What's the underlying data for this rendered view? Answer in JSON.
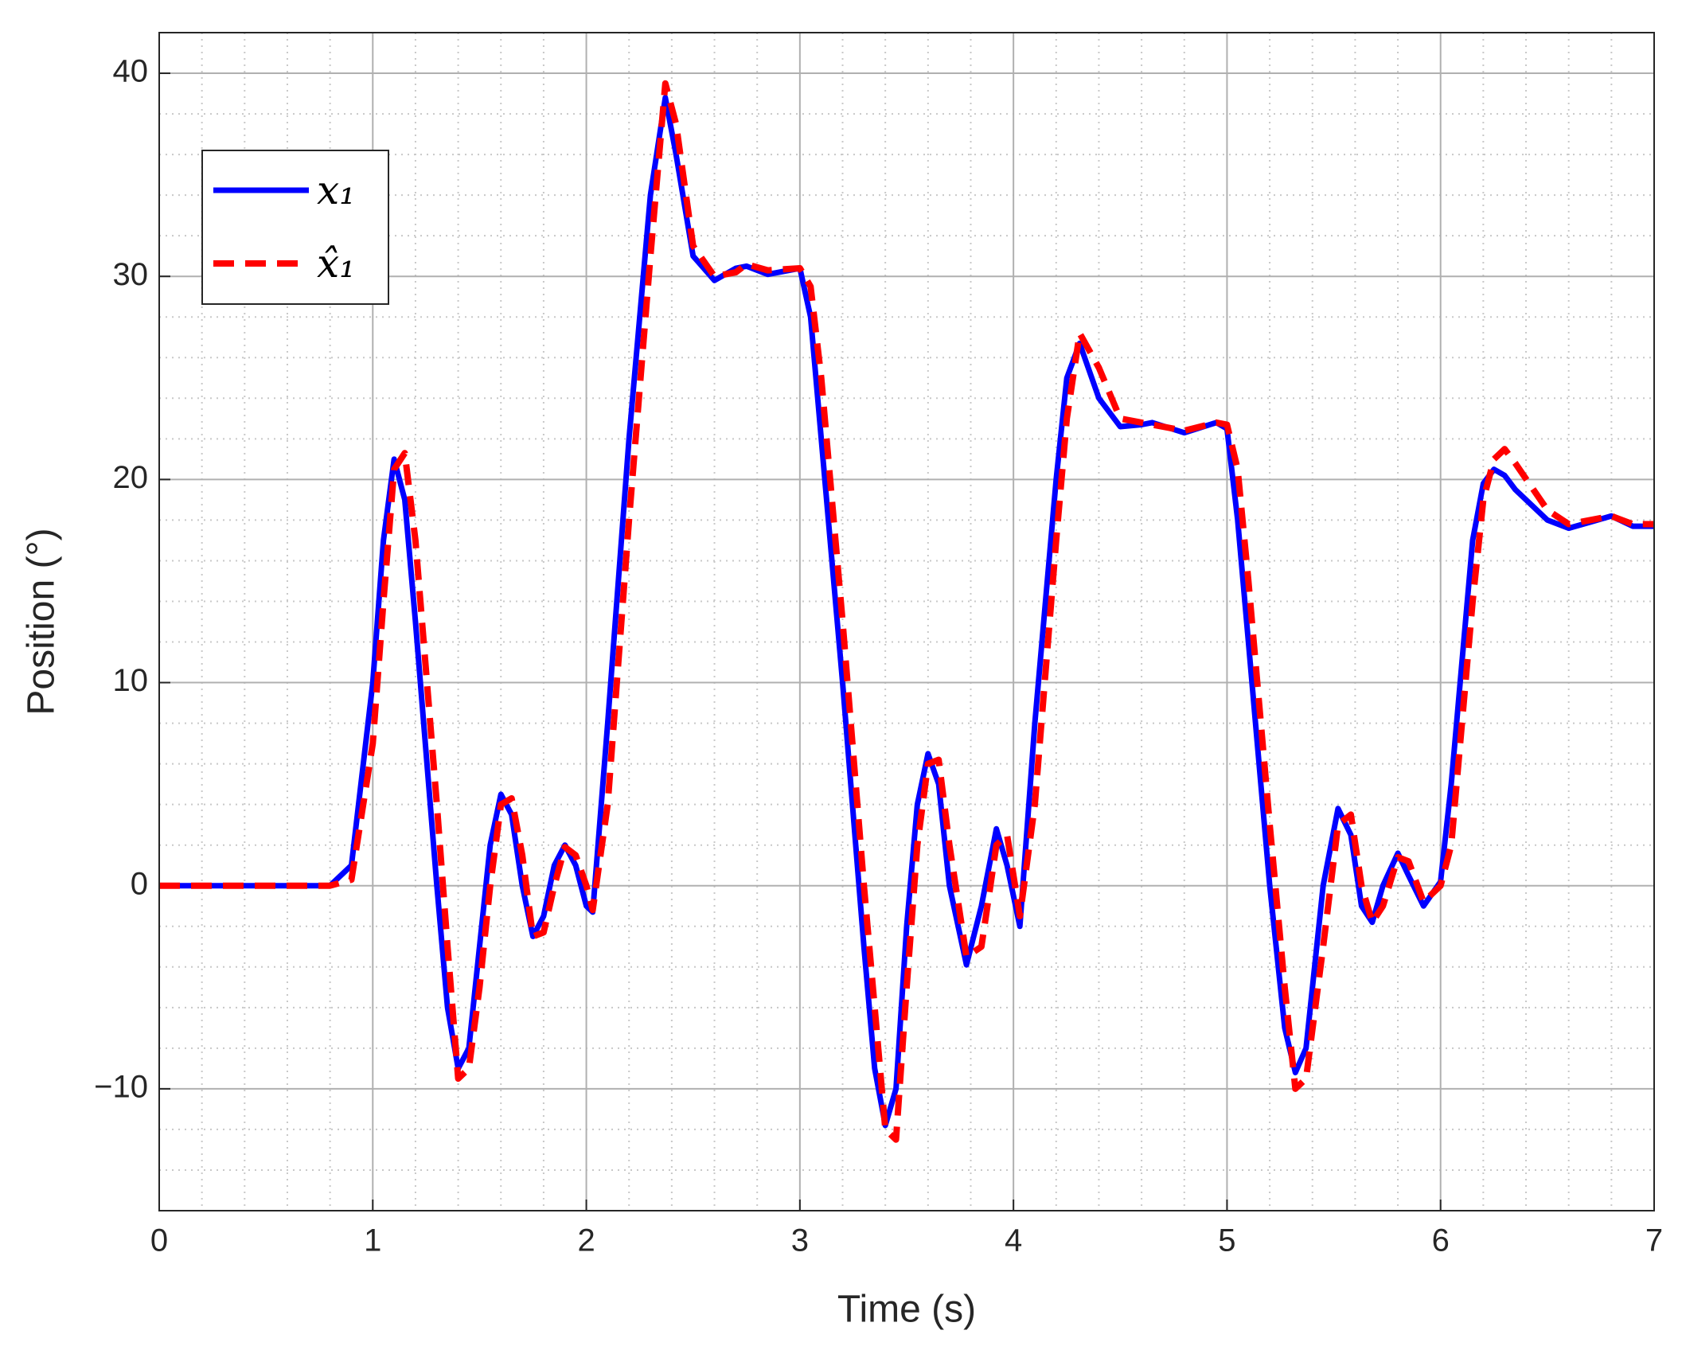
{
  "chart_data": {
    "type": "line",
    "xlabel": "Time (s)",
    "ylabel": "Position (°)",
    "x": [
      0,
      0.8,
      0.9,
      1.0,
      1.05,
      1.1,
      1.15,
      1.2,
      1.3,
      1.35,
      1.4,
      1.45,
      1.5,
      1.55,
      1.6,
      1.65,
      1.7,
      1.75,
      1.8,
      1.85,
      1.9,
      1.95,
      2.0,
      2.03,
      2.1,
      2.2,
      2.3,
      2.37,
      2.42,
      2.5,
      2.6,
      2.7,
      2.75,
      2.85,
      3.0,
      3.05,
      3.1,
      3.2,
      3.3,
      3.35,
      3.4,
      3.45,
      3.5,
      3.55,
      3.6,
      3.65,
      3.7,
      3.78,
      3.85,
      3.92,
      3.97,
      4.03,
      4.1,
      4.2,
      4.25,
      4.31,
      4.4,
      4.5,
      4.6,
      4.65,
      4.8,
      4.95,
      5.0,
      5.05,
      5.1,
      5.2,
      5.27,
      5.32,
      5.37,
      5.45,
      5.52,
      5.58,
      5.63,
      5.68,
      5.73,
      5.8,
      5.85,
      5.92,
      6.0,
      6.05,
      6.15,
      6.2,
      6.25,
      6.3,
      6.35,
      6.5,
      6.6,
      6.7,
      6.8,
      6.9,
      7.0
    ],
    "series": [
      {
        "name": "x₁",
        "color": "#0000ff",
        "dash": false,
        "values": [
          0,
          0,
          1,
          10,
          17,
          21,
          19,
          13,
          0,
          -6,
          -9,
          -8,
          -3,
          2,
          4.5,
          3.5,
          0,
          -2.5,
          -1.5,
          1,
          2,
          1,
          -1,
          -1.3,
          8,
          22,
          34,
          38.8,
          36,
          31,
          29.8,
          30.4,
          30.5,
          30.1,
          30.4,
          28,
          22,
          10,
          -3,
          -9,
          -11.8,
          -10,
          -2,
          4,
          6.5,
          5,
          0,
          -3.9,
          -1,
          2.8,
          1,
          -2,
          8,
          20,
          25,
          26.7,
          24,
          22.6,
          22.7,
          22.8,
          22.3,
          22.8,
          22.5,
          18,
          12,
          0,
          -7,
          -9.2,
          -8,
          0,
          3.8,
          2.5,
          -1,
          -1.8,
          0,
          1.6,
          0.5,
          -1,
          0.2,
          5,
          17,
          19.8,
          20.5,
          20.2,
          19.5,
          18,
          17.6,
          17.9,
          18.2,
          17.7,
          17.7
        ]
      },
      {
        "name": "x̂₁",
        "color": "#ff0000",
        "dash": true,
        "values": [
          0,
          0,
          0.3,
          7,
          14,
          20.5,
          21.3,
          17,
          4,
          -3,
          -9.5,
          -9,
          -5,
          0,
          4,
          4.3,
          1.5,
          -2.5,
          -2.3,
          0,
          1.9,
          1.5,
          0,
          -1.2,
          4,
          18,
          31,
          39.5,
          37.5,
          31.5,
          30,
          30.2,
          30.6,
          30.3,
          30.4,
          29.5,
          25,
          13,
          0,
          -6,
          -12,
          -12.5,
          -5,
          2,
          6,
          6.2,
          2,
          -3.5,
          -3,
          2,
          2.5,
          -1.5,
          4,
          17,
          23,
          27.2,
          25.5,
          23,
          22.8,
          22.7,
          22.4,
          22.8,
          22.7,
          20.5,
          15,
          3,
          -5,
          -10,
          -9.5,
          -3,
          3,
          3.5,
          0,
          -1.8,
          -1,
          1.4,
          1.2,
          -0.8,
          0,
          2,
          14,
          19,
          21,
          21.5,
          20.8,
          18.5,
          17.8,
          18,
          18.2,
          17.8,
          17.8
        ]
      }
    ],
    "xlim": [
      0,
      7
    ],
    "xticks": [
      0,
      1,
      2,
      3,
      4,
      5,
      6,
      7
    ],
    "ylim": [
      -16,
      42
    ],
    "yticks": [
      {
        "value": -10,
        "label": "−10"
      },
      0,
      10,
      20,
      30,
      40
    ],
    "grid": true,
    "minor_grid": true,
    "legend": "upper left"
  }
}
